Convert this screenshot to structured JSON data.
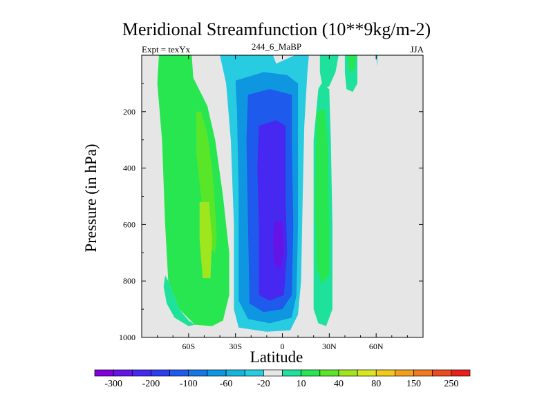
{
  "chart_data": {
    "type": "heatmap",
    "title": "Meridional Streamfunction (10**9kg/m-2)",
    "subtitle_left": "Expt = texYx",
    "subtitle_center": "244_6_MaBP",
    "subtitle_right": "JJA",
    "xlabel": "Latitude",
    "ylabel": "Pressure (in hPa)",
    "x_ticks": [
      "60S",
      "30S",
      "0",
      "30N",
      "60N"
    ],
    "x_tick_values": [
      -60,
      -30,
      0,
      30,
      60
    ],
    "xlim": [
      -90,
      90
    ],
    "y_ticks": [
      "200",
      "400",
      "600",
      "800",
      "1000"
    ],
    "y_tick_values": [
      200,
      400,
      600,
      800,
      1000
    ],
    "ylim": [
      0,
      1000
    ],
    "y_reversed": true,
    "colorbar": {
      "labels": [
        "-300",
        "-200",
        "-100",
        "-60",
        "-20",
        "10",
        "40",
        "80",
        "150",
        "250"
      ],
      "colors": [
        "#8200dc",
        "#6414e6",
        "#4628f0",
        "#2d3cf0",
        "#1e5aeb",
        "#1478e6",
        "#0f96e1",
        "#14b4e1",
        "#28cce1",
        "#e6e6e6",
        "#1ee19b",
        "#28e650",
        "#5ae628",
        "#a0e61e",
        "#d7e61e",
        "#f0c81e",
        "#f0a01e",
        "#f0781e",
        "#eb4b1e",
        "#e61e1e"
      ]
    },
    "regions": [
      {
        "name": "sh-cell-green",
        "level": "20 to 40",
        "color": "#28e650",
        "polygon": [
          [
            -79,
            0
          ],
          [
            -58,
            0
          ],
          [
            -57,
            80
          ],
          [
            -48,
            180
          ],
          [
            -43,
            300
          ],
          [
            -38,
            500
          ],
          [
            -34,
            700
          ],
          [
            -34,
            850
          ],
          [
            -38,
            940
          ],
          [
            -45,
            960
          ],
          [
            -56,
            955
          ],
          [
            -66,
            900
          ],
          [
            -73,
            800
          ],
          [
            -75,
            600
          ],
          [
            -77,
            300
          ],
          [
            -80,
            100
          ]
        ]
      },
      {
        "name": "sh-cell-teal",
        "level": "10 to 20",
        "color": "#1ee19b",
        "polygon": [
          [
            -75,
            780
          ],
          [
            -73,
            800
          ],
          [
            -66,
            900
          ],
          [
            -60,
            940
          ],
          [
            -56,
            955
          ],
          [
            -60,
            960
          ],
          [
            -69,
            930
          ],
          [
            -74,
            880
          ],
          [
            -76,
            820
          ]
        ]
      },
      {
        "name": "sh-cell-lightgreen",
        "level": "40 to 60",
        "color": "#5ae628",
        "polygon": [
          [
            -55,
            200
          ],
          [
            -52,
            200
          ],
          [
            -48,
            280
          ],
          [
            -45,
            400
          ],
          [
            -43,
            550
          ],
          [
            -42,
            650
          ],
          [
            -43,
            700
          ],
          [
            -47,
            680
          ],
          [
            -52,
            500
          ],
          [
            -55,
            350
          ]
        ]
      },
      {
        "name": "sh-cell-yellowgreen",
        "level": "60 to 80",
        "color": "#a0e61e",
        "polygon": [
          [
            -53,
            520
          ],
          [
            -47,
            520
          ],
          [
            -45,
            650
          ],
          [
            -46,
            790
          ],
          [
            -51,
            790
          ],
          [
            -53,
            650
          ]
        ]
      },
      {
        "name": "hadley-cell-20",
        "level": "-20 to -10",
        "color": "#28cce1",
        "polygon": [
          [
            -40,
            0
          ],
          [
            -6,
            0
          ],
          [
            -4,
            30
          ],
          [
            8,
            0
          ],
          [
            17,
            0
          ],
          [
            16,
            60
          ],
          [
            14,
            250
          ],
          [
            13,
            500
          ],
          [
            12,
            800
          ],
          [
            10,
            920
          ],
          [
            5,
            975
          ],
          [
            -10,
            980
          ],
          [
            -28,
            965
          ],
          [
            -31,
            900
          ],
          [
            -31,
            600
          ],
          [
            -33,
            300
          ],
          [
            -36,
            100
          ]
        ]
      },
      {
        "name": "hadley-cell-60",
        "level": "-60 to -20",
        "color": "#0f96e1",
        "polygon": [
          [
            -30,
            90
          ],
          [
            -12,
            60
          ],
          [
            3,
            70
          ],
          [
            10,
            100
          ],
          [
            10,
            300
          ],
          [
            10,
            600
          ],
          [
            9,
            850
          ],
          [
            6,
            930
          ],
          [
            -8,
            950
          ],
          [
            -22,
            935
          ],
          [
            -28,
            870
          ],
          [
            -28,
            500
          ],
          [
            -29,
            200
          ]
        ]
      },
      {
        "name": "hadley-cell-100",
        "level": "-100 to -60",
        "color": "#1e5aeb",
        "polygon": [
          [
            -22,
            140
          ],
          [
            -8,
            120
          ],
          [
            6,
            140
          ],
          [
            6,
            300
          ],
          [
            7,
            600
          ],
          [
            6,
            850
          ],
          [
            0,
            900
          ],
          [
            -12,
            910
          ],
          [
            -21,
            880
          ],
          [
            -22,
            600
          ],
          [
            -23,
            300
          ]
        ]
      },
      {
        "name": "hadley-cell-200",
        "level": "-200 to -100",
        "color": "#4628f0",
        "polygon": [
          [
            -15,
            250
          ],
          [
            -4,
            230
          ],
          [
            2,
            250
          ],
          [
            2,
            500
          ],
          [
            3,
            700
          ],
          [
            1,
            850
          ],
          [
            -8,
            870
          ],
          [
            -15,
            850
          ],
          [
            -15,
            600
          ],
          [
            -16,
            400
          ]
        ]
      },
      {
        "name": "hadley-cell-core",
        "level": "-300 to -200",
        "color": "#6414e6",
        "polygon": [
          [
            -5,
            590
          ],
          [
            0,
            590
          ],
          [
            1,
            680
          ],
          [
            -1,
            760
          ],
          [
            -5,
            740
          ],
          [
            -6,
            650
          ]
        ]
      },
      {
        "name": "nh-cell-teal",
        "level": "10 to 20",
        "color": "#1ee19b",
        "polygon": [
          [
            23,
            120
          ],
          [
            25,
            100
          ],
          [
            30,
            120
          ],
          [
            31,
            300
          ],
          [
            32,
            600
          ],
          [
            32,
            900
          ],
          [
            28,
            960
          ],
          [
            23,
            950
          ],
          [
            20,
            900
          ],
          [
            20,
            600
          ],
          [
            20,
            300
          ]
        ]
      },
      {
        "name": "nh-cell-green",
        "level": "20 to 40",
        "color": "#28e650",
        "polygon": [
          [
            22,
            200
          ],
          [
            27,
            190
          ],
          [
            29,
            300
          ],
          [
            30,
            600
          ],
          [
            30,
            780
          ],
          [
            25,
            810
          ],
          [
            22,
            750
          ],
          [
            21,
            500
          ]
        ]
      },
      {
        "name": "nh-upper-teal",
        "level": "10 to 20",
        "color": "#1ee19b",
        "polygon": [
          [
            24,
            0
          ],
          [
            36,
            0
          ],
          [
            34,
            60
          ],
          [
            30,
            110
          ],
          [
            26,
            120
          ],
          [
            24,
            60
          ]
        ]
      },
      {
        "name": "polar-teal",
        "level": "10 to 20",
        "color": "#1ee19b",
        "polygon": [
          [
            40,
            0
          ],
          [
            48,
            0
          ],
          [
            48,
            100
          ],
          [
            45,
            130
          ],
          [
            41,
            120
          ],
          [
            40,
            60
          ]
        ]
      },
      {
        "name": "polar-green",
        "level": "20 to 40",
        "color": "#28e650",
        "polygon": [
          [
            42,
            0
          ],
          [
            47,
            0
          ],
          [
            46,
            50
          ],
          [
            43,
            60
          ]
        ]
      },
      {
        "name": "polar-blue",
        "level": "-20 to -10",
        "color": "#28cce1",
        "polygon": [
          [
            60,
            0
          ],
          [
            61,
            0
          ],
          [
            60.6,
            40
          ]
        ]
      }
    ]
  }
}
